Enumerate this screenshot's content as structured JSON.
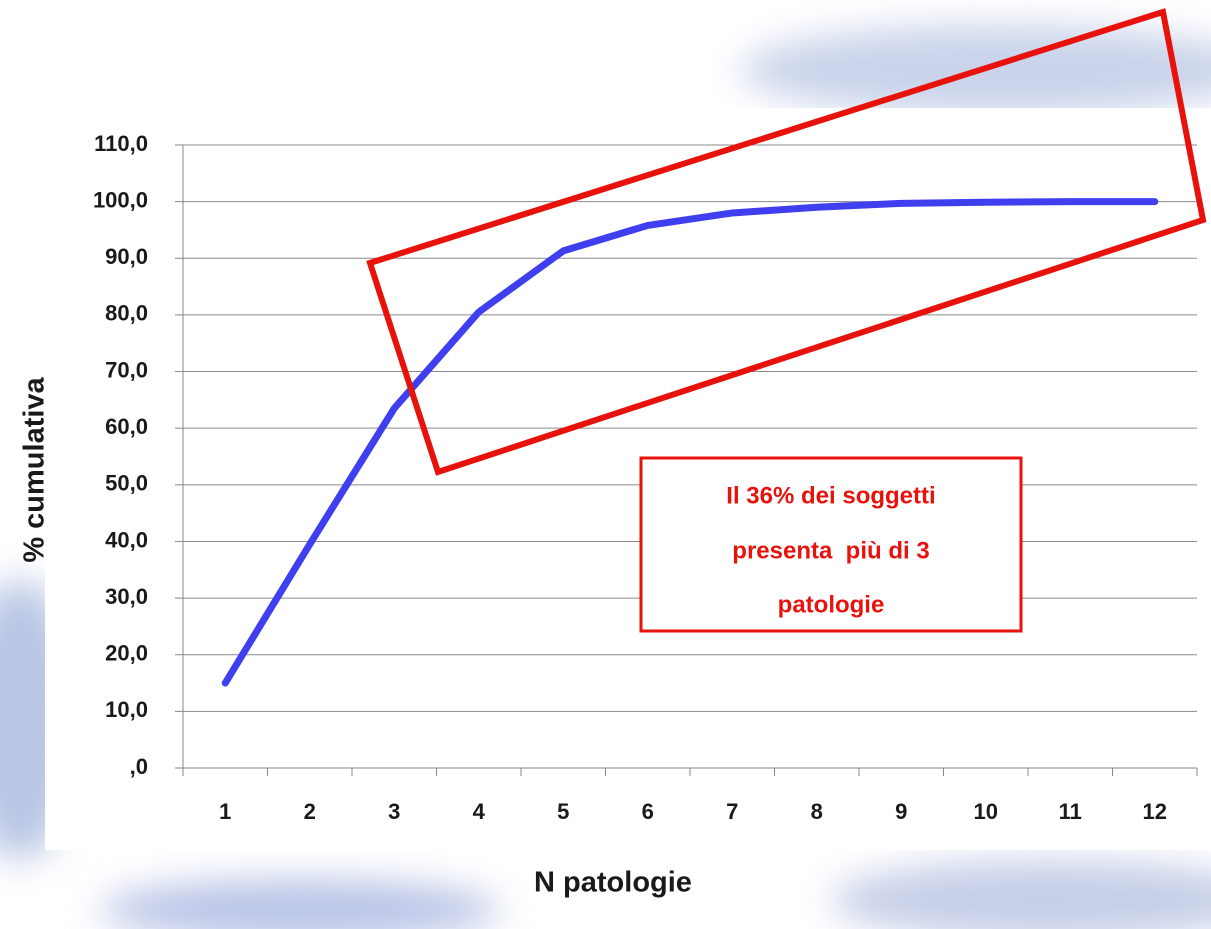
{
  "chart_data": {
    "type": "line",
    "x_label": "N patologie",
    "y_label": "% cumulativa",
    "categories": [
      "1",
      "2",
      "3",
      "4",
      "5",
      "6",
      "7",
      "8",
      "9",
      "10",
      "11",
      "12"
    ],
    "series": [
      {
        "name": "% cumulativa",
        "color": "#3f3ff0",
        "values": [
          15,
          39.5,
          63.5,
          80.5,
          91.3,
          95.8,
          98,
          99,
          99.7,
          99.9,
          100,
          100
        ]
      }
    ],
    "ylim": [
      0,
      110
    ],
    "yticks": [
      {
        "value": 0,
        "label": ",0"
      },
      {
        "value": 10,
        "label": "10,0"
      },
      {
        "value": 20,
        "label": "20,0"
      },
      {
        "value": 30,
        "label": "30,0"
      },
      {
        "value": 40,
        "label": "40,0"
      },
      {
        "value": 50,
        "label": "50,0"
      },
      {
        "value": 60,
        "label": "60,0"
      },
      {
        "value": 70,
        "label": "70,0"
      },
      {
        "value": 80,
        "label": "80,0"
      },
      {
        "value": 90,
        "label": "90,0"
      },
      {
        "value": 100,
        "label": "100,0"
      },
      {
        "value": 110,
        "label": "110,0"
      }
    ],
    "grid": true,
    "annotation": [
      "Il 36% dei soggetti",
      "presenta  più di 3",
      "patologie"
    ],
    "annotation_color": "#e8120c"
  }
}
